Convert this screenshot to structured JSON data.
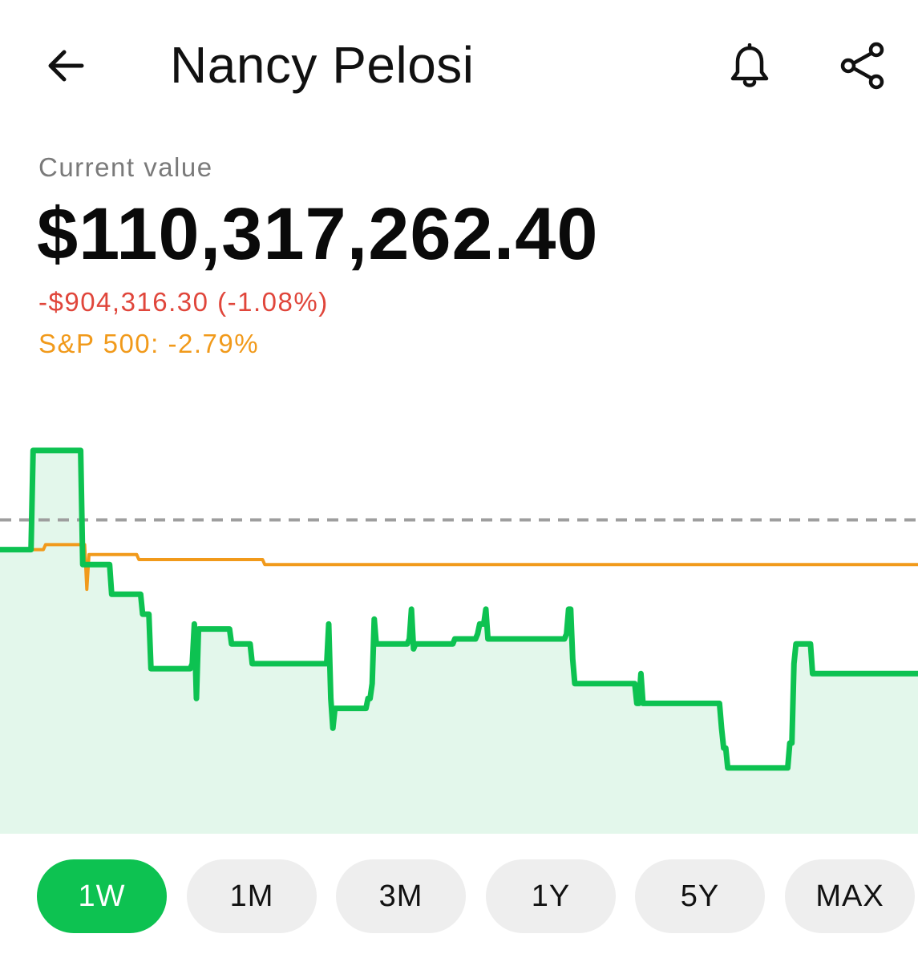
{
  "header": {
    "title": "Nancy Pelosi",
    "back_icon": "arrow-left-icon",
    "alert_icon": "bell-icon",
    "share_icon": "share-icon"
  },
  "summary": {
    "current_label": "Current value",
    "current_value": "$110,317,262.40",
    "change_text": "-$904,316.30 (-1.08%)",
    "benchmark_text": "S&P 500: -2.79%"
  },
  "colors": {
    "portfolio_line": "#0dc251",
    "portfolio_fill": "#e3f7eb",
    "benchmark_line": "#f19a1b",
    "baseline_dash": "#9e9e9e",
    "negative": "#e0463b",
    "active_range_bg": "#0dc251",
    "inactive_range_bg": "#eeeeee"
  },
  "chart_data": {
    "type": "line",
    "grid": false,
    "legend": "none",
    "series": [
      {
        "values": [
          0.98,
          0.98,
          0.98,
          0.98,
          0.98,
          0.98,
          0.98,
          0.98,
          0.98,
          0.98,
          0.98,
          0.98,
          0.98,
          0.98,
          0.98,
          0.98,
          1.0,
          1.0,
          1.0,
          1.0,
          1.0,
          1.0,
          1.0,
          1.0,
          1.0,
          1.0,
          1.0,
          1.0,
          1.0,
          1.0,
          1.0,
          1.0,
          1.0,
          1.0,
          1.0,
          1.0,
          1.0,
          1.0,
          1.0,
          1.0,
          0.977,
          0.977,
          0.977,
          0.977,
          0.977,
          0.977,
          0.977,
          0.977,
          0.977,
          0.977,
          0.977,
          0.977,
          0.977,
          0.977,
          0.971,
          0.971,
          0.971,
          0.971,
          0.971,
          0.971,
          0.971,
          0.971,
          0.971,
          0.971,
          0.971,
          0.971,
          0.971,
          0.971,
          0.971,
          0.967,
          0.967,
          0.967,
          0.967,
          0.956,
          0.956,
          0.956,
          0.956,
          0.956,
          0.956,
          0.956,
          0.956,
          0.956,
          0.956,
          0.956,
          0.956,
          0.956,
          0.956,
          0.956,
          0.956,
          0.956,
          0.956,
          0.956,
          0.956,
          0.957,
          0.965,
          0.95,
          0.964,
          0.964,
          0.964,
          0.964,
          0.964,
          0.964,
          0.964,
          0.964,
          0.964,
          0.964,
          0.964,
          0.964,
          0.964,
          0.964,
          0.964,
          0.964,
          0.961,
          0.961,
          0.961,
          0.961,
          0.961,
          0.961,
          0.961,
          0.961,
          0.961,
          0.961,
          0.957,
          0.957,
          0.957,
          0.957,
          0.957,
          0.957,
          0.957,
          0.957,
          0.957,
          0.957,
          0.957,
          0.957,
          0.957,
          0.957,
          0.957,
          0.957,
          0.957,
          0.957,
          0.957,
          0.957,
          0.957,
          0.957,
          0.957,
          0.957,
          0.957,
          0.957,
          0.957,
          0.957,
          0.957,
          0.957,
          0.957,
          0.957,
          0.957,
          0.957,
          0.957,
          0.957,
          0.957,
          0.965,
          0.95,
          0.944,
          0.948,
          0.948,
          0.948,
          0.948,
          0.948,
          0.948,
          0.948,
          0.948,
          0.948,
          0.948,
          0.948,
          0.948,
          0.948,
          0.948,
          0.948,
          0.948,
          0.95,
          0.95,
          0.953,
          0.966,
          0.961,
          0.961,
          0.961,
          0.961,
          0.961,
          0.961,
          0.961,
          0.961,
          0.961,
          0.961,
          0.961,
          0.961,
          0.961,
          0.961,
          0.961,
          0.961,
          0.962,
          0.968,
          0.96,
          0.961,
          0.961,
          0.961,
          0.961,
          0.961,
          0.961,
          0.961,
          0.961,
          0.961,
          0.961,
          0.961,
          0.961,
          0.961,
          0.961,
          0.961,
          0.961,
          0.961,
          0.961,
          0.961,
          0.962,
          0.962,
          0.962,
          0.962,
          0.962,
          0.962,
          0.962,
          0.962,
          0.962,
          0.962,
          0.962,
          0.963,
          0.965,
          0.965,
          0.965,
          0.968,
          0.962,
          0.962,
          0.962,
          0.962,
          0.962,
          0.962,
          0.962,
          0.962,
          0.962,
          0.962,
          0.962,
          0.962,
          0.962,
          0.962,
          0.962,
          0.962,
          0.962,
          0.962,
          0.962,
          0.962,
          0.962,
          0.962,
          0.962,
          0.962,
          0.962,
          0.962,
          0.962,
          0.962,
          0.962,
          0.962,
          0.962,
          0.962,
          0.962,
          0.962,
          0.962,
          0.962,
          0.962,
          0.962,
          0.963,
          0.968,
          0.968,
          0.958,
          0.953,
          0.953,
          0.953,
          0.953,
          0.953,
          0.953,
          0.953,
          0.953,
          0.953,
          0.953,
          0.953,
          0.953,
          0.953,
          0.953,
          0.953,
          0.953,
          0.953,
          0.953,
          0.953,
          0.953,
          0.953,
          0.953,
          0.953,
          0.953,
          0.953,
          0.953,
          0.953,
          0.953,
          0.953,
          0.953,
          0.949,
          0.949,
          0.955,
          0.949,
          0.949,
          0.949,
          0.949,
          0.949,
          0.949,
          0.949,
          0.949,
          0.949,
          0.949,
          0.949,
          0.949,
          0.949,
          0.949,
          0.949,
          0.949,
          0.949,
          0.949,
          0.949,
          0.949,
          0.949,
          0.949,
          0.949,
          0.949,
          0.949,
          0.949,
          0.949,
          0.949,
          0.949,
          0.949,
          0.949,
          0.949,
          0.949,
          0.949,
          0.949,
          0.949,
          0.949,
          0.949,
          0.944,
          0.94,
          0.94,
          0.936,
          0.936,
          0.936,
          0.936,
          0.936,
          0.936,
          0.936,
          0.936,
          0.936,
          0.936,
          0.936,
          0.936,
          0.936,
          0.936,
          0.936,
          0.936,
          0.936,
          0.936,
          0.936,
          0.936,
          0.936,
          0.936,
          0.936,
          0.936,
          0.936,
          0.936,
          0.936,
          0.936,
          0.936,
          0.936,
          0.941,
          0.941,
          0.957,
          0.961,
          0.961,
          0.961,
          0.961,
          0.961,
          0.961,
          0.961,
          0.961,
          0.955,
          0.955,
          0.955,
          0.955,
          0.955,
          0.955,
          0.955,
          0.955,
          0.955,
          0.955,
          0.955,
          0.955,
          0.955,
          0.955,
          0.955,
          0.955,
          0.955,
          0.955,
          0.955,
          0.955,
          0.955,
          0.955,
          0.955,
          0.955,
          0.955,
          0.955,
          0.955,
          0.955,
          0.955,
          0.955,
          0.955,
          0.955,
          0.955,
          0.955,
          0.955,
          0.955,
          0.955,
          0.955,
          0.955,
          0.955,
          0.955,
          0.955,
          0.955,
          0.955,
          0.955,
          0.955,
          0.955,
          0.955,
          0.955,
          0.955,
          0.955,
          0.955
        ]
      },
      {
        "values": [
          0.98,
          0.98,
          0.98,
          0.98,
          0.98,
          0.98,
          0.98,
          0.98,
          0.98,
          0.98,
          0.98,
          0.98,
          0.98,
          0.98,
          0.98,
          0.98,
          0.98,
          0.98,
          0.98,
          0.98,
          0.98,
          0.981,
          0.981,
          0.981,
          0.981,
          0.981,
          0.981,
          0.981,
          0.981,
          0.981,
          0.981,
          0.981,
          0.981,
          0.981,
          0.981,
          0.981,
          0.981,
          0.981,
          0.981,
          0.981,
          0.972,
          0.979,
          0.979,
          0.979,
          0.979,
          0.979,
          0.979,
          0.979,
          0.979,
          0.979,
          0.979,
          0.979,
          0.979,
          0.979,
          0.979,
          0.979,
          0.979,
          0.979,
          0.979,
          0.979,
          0.979,
          0.979,
          0.979,
          0.979,
          0.978,
          0.978,
          0.978,
          0.978,
          0.978,
          0.978,
          0.978,
          0.978,
          0.978,
          0.978,
          0.978,
          0.978,
          0.978,
          0.978,
          0.978,
          0.978,
          0.978,
          0.978,
          0.978,
          0.978,
          0.978,
          0.978,
          0.978,
          0.978,
          0.978,
          0.978,
          0.978,
          0.978,
          0.978,
          0.978,
          0.978,
          0.978,
          0.978,
          0.978,
          0.978,
          0.978,
          0.978,
          0.978,
          0.978,
          0.978,
          0.978,
          0.978,
          0.978,
          0.978,
          0.978,
          0.978,
          0.978,
          0.978,
          0.978,
          0.978,
          0.978,
          0.978,
          0.978,
          0.978,
          0.978,
          0.978,
          0.978,
          0.978,
          0.977,
          0.977,
          0.977,
          0.977,
          0.977,
          0.977,
          0.977,
          0.977,
          0.977,
          0.977,
          0.977,
          0.977,
          0.977,
          0.977,
          0.977,
          0.977,
          0.977,
          0.977,
          0.977,
          0.977,
          0.977,
          0.977,
          0.977,
          0.977,
          0.977,
          0.977,
          0.977,
          0.977,
          0.977,
          0.977,
          0.977,
          0.977,
          0.977,
          0.977,
          0.977,
          0.977,
          0.977,
          0.977,
          0.977,
          0.977,
          0.977,
          0.977,
          0.977,
          0.977,
          0.977,
          0.977,
          0.977,
          0.977,
          0.977,
          0.977,
          0.977,
          0.977,
          0.977,
          0.977,
          0.977,
          0.977,
          0.977,
          0.977,
          0.977,
          0.977,
          0.977,
          0.977,
          0.977,
          0.977,
          0.977,
          0.977,
          0.977,
          0.977,
          0.977,
          0.977,
          0.977,
          0.977,
          0.977,
          0.977,
          0.977,
          0.977,
          0.977,
          0.977,
          0.977,
          0.977,
          0.977,
          0.977,
          0.977,
          0.977,
          0.977,
          0.977,
          0.977,
          0.977,
          0.977,
          0.977,
          0.977,
          0.977,
          0.977,
          0.977,
          0.977,
          0.977,
          0.977,
          0.977,
          0.977,
          0.977,
          0.977,
          0.977,
          0.977,
          0.977,
          0.977,
          0.977,
          0.977,
          0.977,
          0.977,
          0.977,
          0.977,
          0.977,
          0.977,
          0.977,
          0.977,
          0.977,
          0.977,
          0.977,
          0.977,
          0.977,
          0.977,
          0.977,
          0.977,
          0.977,
          0.977,
          0.977,
          0.977,
          0.977,
          0.977,
          0.977,
          0.977,
          0.977,
          0.977,
          0.977,
          0.977,
          0.977,
          0.977,
          0.977,
          0.977,
          0.977,
          0.977,
          0.977,
          0.977,
          0.977,
          0.977,
          0.977,
          0.977,
          0.977,
          0.977,
          0.977,
          0.977,
          0.977,
          0.977,
          0.977,
          0.977,
          0.977,
          0.977,
          0.977,
          0.977,
          0.977,
          0.977,
          0.977,
          0.977,
          0.977,
          0.977,
          0.977,
          0.977,
          0.977,
          0.977,
          0.977,
          0.977,
          0.977,
          0.977,
          0.977,
          0.977,
          0.977,
          0.977,
          0.977,
          0.977,
          0.977,
          0.977,
          0.977,
          0.977,
          0.977,
          0.977,
          0.977,
          0.977,
          0.977,
          0.977,
          0.977,
          0.977,
          0.977,
          0.977,
          0.977,
          0.977,
          0.977,
          0.977,
          0.977,
          0.977,
          0.977,
          0.977,
          0.977,
          0.977,
          0.977,
          0.977,
          0.977,
          0.977,
          0.977,
          0.977,
          0.977,
          0.977,
          0.977,
          0.977,
          0.977,
          0.977,
          0.977,
          0.977,
          0.977,
          0.977,
          0.977,
          0.977,
          0.977,
          0.977,
          0.977,
          0.977,
          0.977,
          0.977,
          0.977,
          0.977,
          0.977,
          0.977,
          0.977,
          0.977,
          0.977,
          0.977,
          0.977,
          0.977,
          0.977,
          0.977,
          0.977,
          0.977,
          0.977,
          0.977,
          0.977,
          0.977,
          0.977,
          0.977,
          0.977,
          0.977,
          0.977,
          0.977,
          0.977,
          0.977,
          0.977,
          0.977,
          0.977,
          0.977,
          0.977,
          0.977,
          0.977,
          0.977,
          0.977,
          0.977,
          0.977,
          0.977,
          0.977,
          0.977,
          0.977,
          0.977,
          0.977,
          0.977,
          0.977,
          0.977,
          0.977,
          0.977,
          0.977,
          0.977,
          0.977,
          0.977,
          0.977,
          0.977,
          0.977,
          0.977,
          0.977,
          0.977,
          0.977,
          0.977,
          0.977,
          0.977,
          0.977,
          0.977,
          0.977,
          0.977,
          0.977,
          0.977,
          0.977,
          0.977,
          0.977,
          0.977,
          0.977,
          0.977,
          0.977
        ]
      }
    ],
    "baseline": 0.986,
    "ylim": [
      0.93,
      1.01
    ]
  },
  "ranges": {
    "active": "1W",
    "items": [
      "1W",
      "1M",
      "3M",
      "1Y",
      "5Y",
      "MAX"
    ]
  }
}
